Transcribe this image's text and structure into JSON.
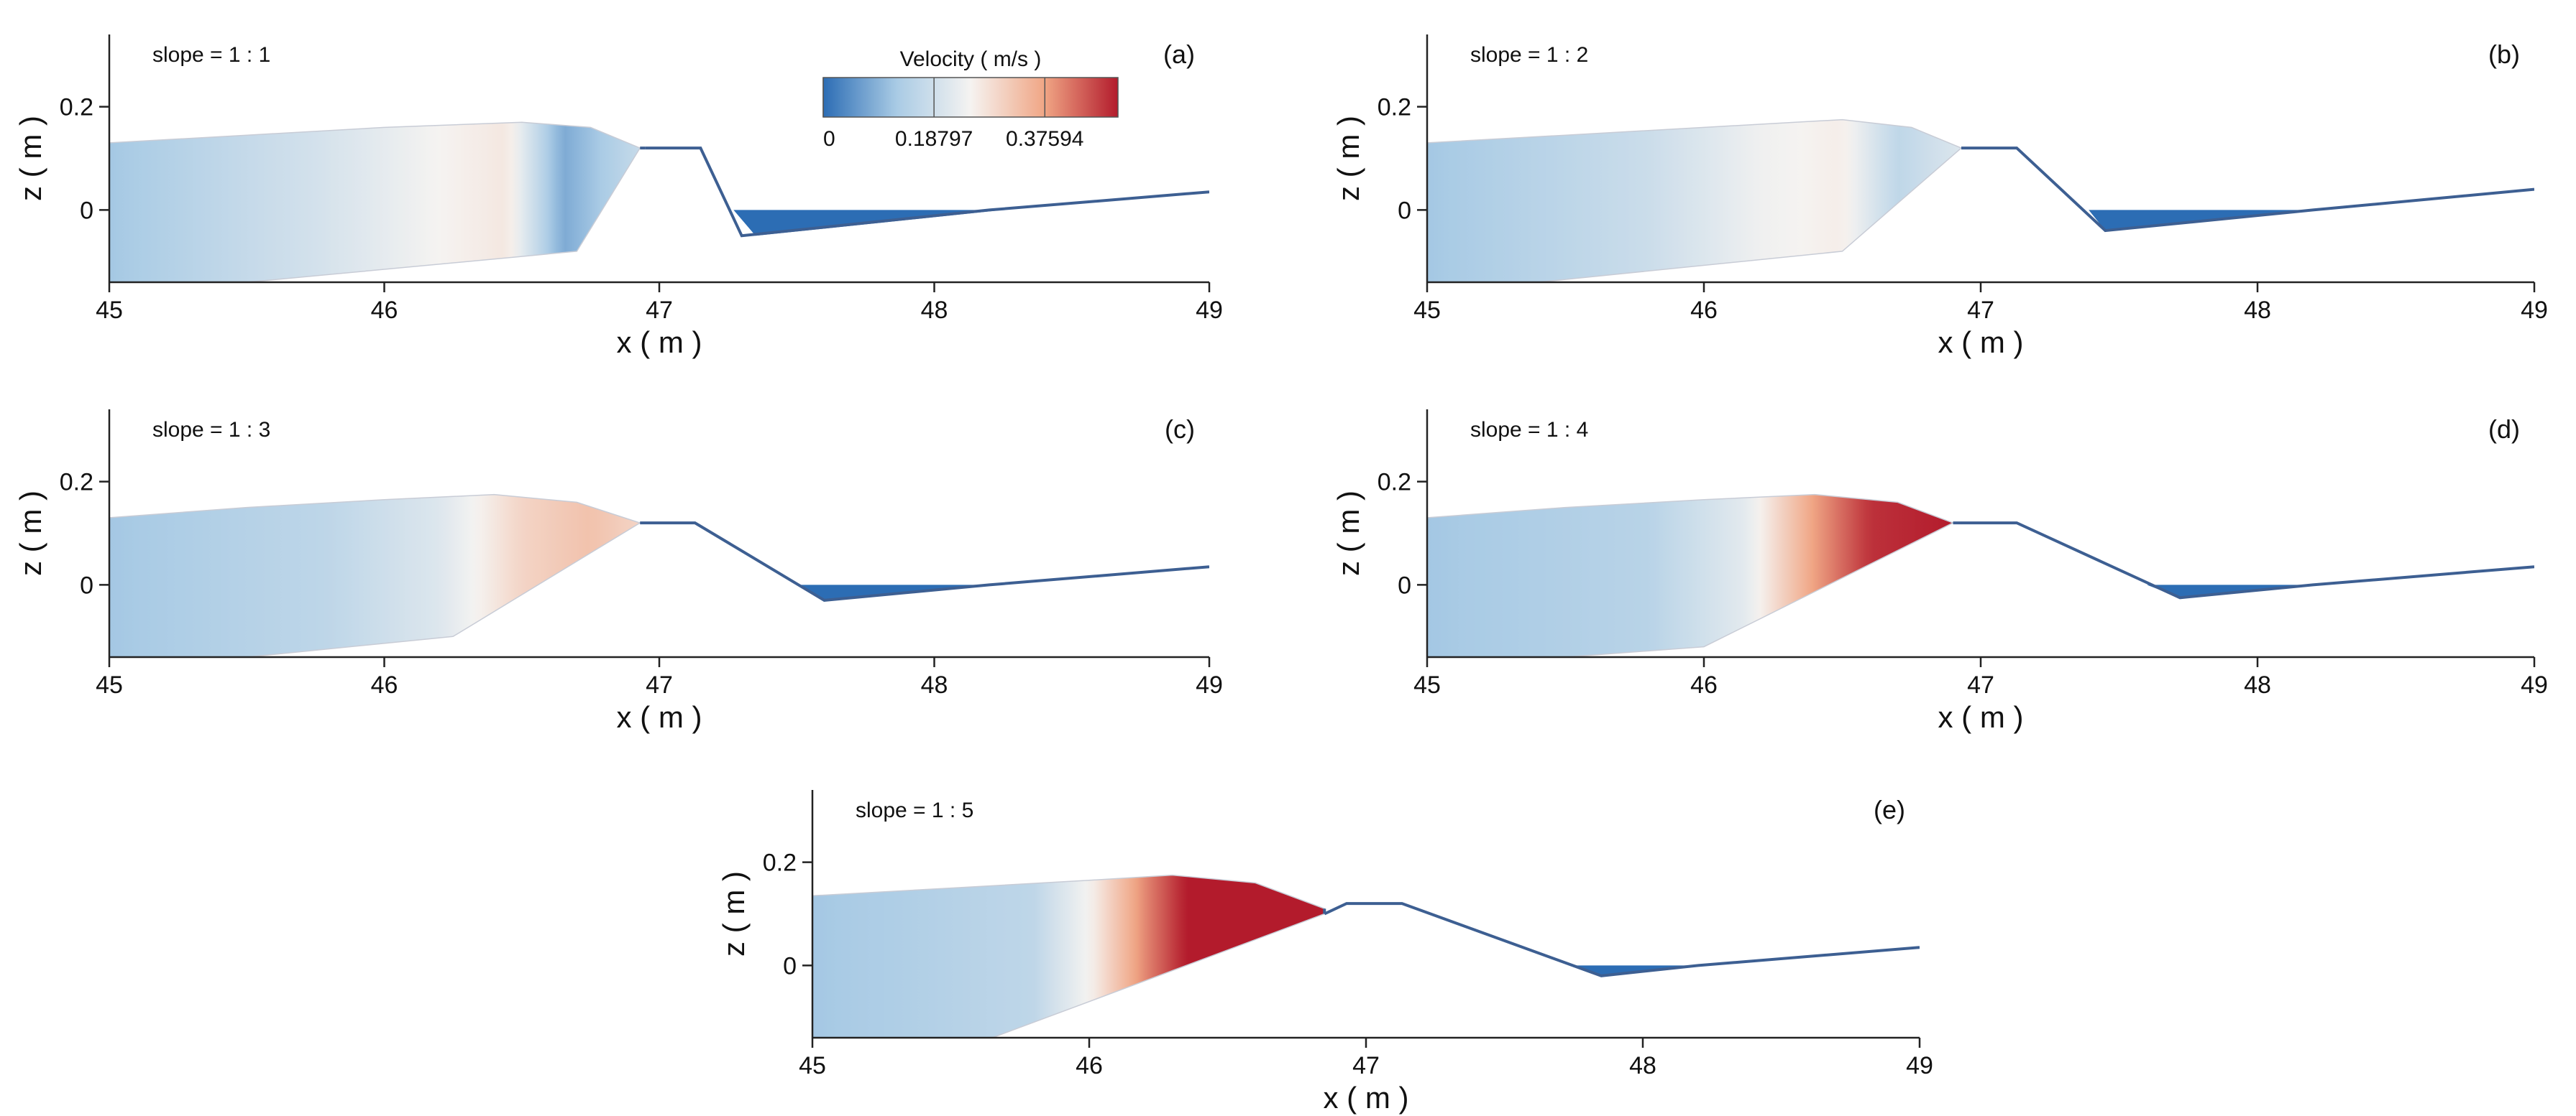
{
  "colorbar": {
    "title": "Velocity ( m/s )",
    "ticks": [
      0,
      0.18797,
      0.37594
    ],
    "tick_labels": [
      "0",
      "0.18797",
      "0.37594"
    ],
    "min": 0,
    "max": 0.5,
    "colors": [
      "#2c6db4",
      "#a9cbe5",
      "#f5f3f1",
      "#f0a685",
      "#b31b2c"
    ]
  },
  "chart_data": [
    {
      "type": "contour",
      "panel_label": "(a)",
      "annotation": "slope = 1 : 1",
      "xlabel": "x ( m )",
      "ylabel": "z ( m )",
      "xlim": [
        45,
        49
      ],
      "ylim": [
        -0.14,
        0.34
      ],
      "xticks": [
        45,
        46,
        47,
        48,
        49
      ],
      "xtick_labels": [
        "45",
        "46",
        "47",
        "48",
        "49"
      ],
      "yticks": [
        0,
        0.2
      ],
      "ytick_labels": [
        "0",
        "0.2"
      ],
      "bed_profile": {
        "x": [
          46.7,
          46.95,
          47.15,
          47.3,
          48.2,
          49.0
        ],
        "z": [
          -0.08,
          0.12,
          0.12,
          -0.05,
          0.0,
          0.035
        ]
      },
      "water_surface": {
        "x": [
          45.0,
          45.5,
          46.0,
          46.5,
          46.75,
          46.93
        ],
        "z": [
          0.13,
          0.145,
          0.16,
          0.17,
          0.16,
          0.12
        ]
      },
      "flow_bottom": {
        "x": [
          45.5,
          46.7
        ],
        "z": [
          -0.14,
          -0.08
        ]
      },
      "velocity_profile": {
        "x": [
          45.0,
          45.8,
          46.2,
          46.45,
          46.65,
          46.95
        ],
        "v": [
          0.12,
          0.2,
          0.25,
          0.27,
          0.08,
          0.18
        ]
      },
      "downstream_pool": {
        "x": [
          47.27,
          47.35,
          48.25,
          47.27
        ],
        "z": [
          0.0,
          -0.05,
          0.0,
          0.0
        ],
        "v": 0.0
      }
    },
    {
      "type": "contour",
      "panel_label": "(b)",
      "annotation": "slope = 1 : 2",
      "xlabel": "x ( m )",
      "ylabel": "z ( m )",
      "xlim": [
        45,
        49
      ],
      "ylim": [
        -0.14,
        0.34
      ],
      "xticks": [
        45,
        46,
        47,
        48,
        49
      ],
      "xtick_labels": [
        "45",
        "46",
        "47",
        "48",
        "49"
      ],
      "yticks": [
        0,
        0.2
      ],
      "ytick_labels": [
        "0",
        "0.2"
      ],
      "bed_profile": {
        "x": [
          46.5,
          46.93,
          47.13,
          47.45,
          48.2,
          49.0
        ],
        "z": [
          -0.08,
          0.12,
          0.12,
          -0.04,
          0.0,
          0.04
        ]
      },
      "water_surface": {
        "x": [
          45.0,
          45.5,
          46.0,
          46.5,
          46.75,
          46.93
        ],
        "z": [
          0.13,
          0.145,
          0.16,
          0.175,
          0.16,
          0.12
        ]
      },
      "flow_bottom": {
        "x": [
          45.4,
          46.5
        ],
        "z": [
          -0.14,
          -0.08
        ]
      },
      "velocity_profile": {
        "x": [
          45.0,
          45.8,
          46.2,
          46.5,
          46.7,
          46.93
        ],
        "v": [
          0.12,
          0.18,
          0.24,
          0.26,
          0.16,
          0.21
        ]
      },
      "downstream_pool": {
        "x": [
          47.39,
          47.45,
          48.22,
          47.39
        ],
        "z": [
          0.0,
          -0.04,
          0.0,
          0.0
        ],
        "v": 0.0
      }
    },
    {
      "type": "contour",
      "panel_label": "(c)",
      "annotation": "slope = 1 : 3",
      "xlabel": "x ( m )",
      "ylabel": "z ( m )",
      "xlim": [
        45,
        49
      ],
      "ylim": [
        -0.14,
        0.34
      ],
      "xticks": [
        45,
        46,
        47,
        48,
        49
      ],
      "xtick_labels": [
        "45",
        "46",
        "47",
        "48",
        "49"
      ],
      "yticks": [
        0,
        0.2
      ],
      "ytick_labels": [
        "0",
        "0.2"
      ],
      "bed_profile": {
        "x": [
          46.25,
          46.93,
          47.13,
          47.6,
          48.2,
          49.0
        ],
        "z": [
          -0.1,
          0.12,
          0.12,
          -0.03,
          0.0,
          0.035
        ]
      },
      "water_surface": {
        "x": [
          45.0,
          45.5,
          46.0,
          46.4,
          46.7,
          46.93
        ],
        "z": [
          0.13,
          0.15,
          0.165,
          0.175,
          0.16,
          0.12
        ]
      },
      "flow_bottom": {
        "x": [
          45.5,
          46.25
        ],
        "z": [
          -0.14,
          -0.1
        ]
      },
      "velocity_profile": {
        "x": [
          45.0,
          45.8,
          46.2,
          46.5,
          46.75,
          46.93
        ],
        "v": [
          0.12,
          0.16,
          0.21,
          0.3,
          0.33,
          0.3
        ]
      },
      "downstream_pool": {
        "x": [
          47.5,
          47.6,
          48.23,
          47.5
        ],
        "z": [
          0.0,
          -0.03,
          0.0,
          0.0
        ],
        "v": 0.0
      }
    },
    {
      "type": "contour",
      "panel_label": "(d)",
      "annotation": "slope = 1 : 4",
      "xlabel": "x ( m )",
      "ylabel": "z ( m )",
      "xlim": [
        45,
        49
      ],
      "ylim": [
        -0.14,
        0.34
      ],
      "xticks": [
        45,
        46,
        47,
        48,
        49
      ],
      "xtick_labels": [
        "45",
        "46",
        "47",
        "48",
        "49"
      ],
      "yticks": [
        0,
        0.2
      ],
      "ytick_labels": [
        "0",
        "0.2"
      ],
      "bed_profile": {
        "x": [
          46.0,
          46.93,
          47.13,
          47.72,
          48.2,
          49.0
        ],
        "z": [
          -0.12,
          0.12,
          0.12,
          -0.025,
          0.0,
          0.035
        ]
      },
      "water_surface": {
        "x": [
          45.0,
          45.5,
          46.0,
          46.4,
          46.7,
          46.9
        ],
        "z": [
          0.13,
          0.15,
          0.165,
          0.175,
          0.16,
          0.12
        ]
      },
      "flow_bottom": {
        "x": [
          45.5,
          46.0
        ],
        "z": [
          -0.14,
          -0.12
        ]
      },
      "velocity_profile": {
        "x": [
          45.0,
          45.8,
          46.15,
          46.4,
          46.6,
          46.9
        ],
        "v": [
          0.12,
          0.15,
          0.22,
          0.38,
          0.48,
          0.5
        ]
      },
      "downstream_pool": {
        "x": [
          47.6,
          47.72,
          48.23,
          47.6
        ],
        "z": [
          0.0,
          -0.025,
          0.0,
          0.0
        ],
        "v": 0.0
      }
    },
    {
      "type": "contour",
      "panel_label": "(e)",
      "annotation": "slope = 1 : 5",
      "xlabel": "x ( m )",
      "ylabel": "z ( m )",
      "xlim": [
        45,
        49
      ],
      "ylim": [
        -0.14,
        0.34
      ],
      "xticks": [
        45,
        46,
        47,
        48,
        49
      ],
      "xtick_labels": [
        "45",
        "46",
        "47",
        "48",
        "49"
      ],
      "yticks": [
        0,
        0.2
      ],
      "ytick_labels": [
        "0",
        "0.2"
      ],
      "bed_profile": {
        "x": [
          45.65,
          46.85,
          46.93,
          47.13,
          47.85,
          48.2,
          49.0
        ],
        "z": [
          -0.14,
          0.1,
          0.12,
          0.12,
          -0.02,
          0.0,
          0.035
        ]
      },
      "water_surface": {
        "x": [
          45.0,
          45.5,
          46.0,
          46.3,
          46.6,
          46.85
        ],
        "z": [
          0.135,
          0.15,
          0.165,
          0.175,
          0.16,
          0.11
        ]
      },
      "flow_bottom": {
        "x": [
          45.6,
          45.65
        ],
        "z": [
          -0.14,
          -0.14
        ]
      },
      "velocity_profile": {
        "x": [
          45.0,
          45.8,
          46.0,
          46.2,
          46.35,
          46.85
        ],
        "v": [
          0.12,
          0.16,
          0.25,
          0.4,
          0.5,
          0.5
        ]
      },
      "downstream_pool": {
        "x": [
          47.75,
          47.85,
          48.22,
          47.75
        ],
        "z": [
          0.0,
          -0.02,
          0.0,
          0.0
        ],
        "v": 0.0
      }
    }
  ]
}
